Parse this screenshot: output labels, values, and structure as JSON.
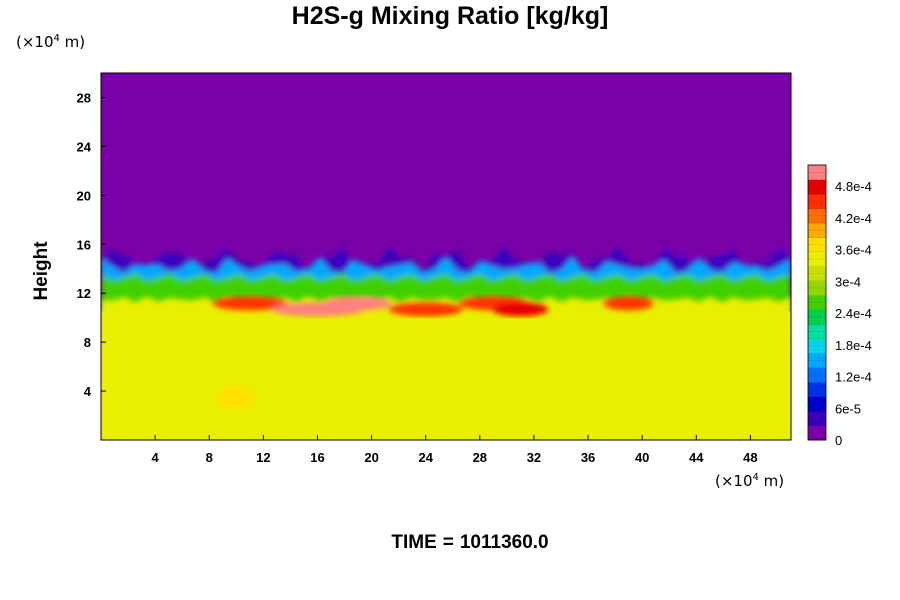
{
  "chart_data": {
    "type": "heatmap",
    "title": "H2S-g Mixing Ratio [kg/kg]",
    "ylabel": "Height",
    "x_unit": "(×10",
    "x_unit_exp": "4",
    "x_unit_tail": "m)",
    "y_unit": "(×10",
    "y_unit_exp": "4",
    "y_unit_tail": "m)",
    "xlim": [
      0,
      51
    ],
    "ylim": [
      0,
      30
    ],
    "x_ticks": [
      4,
      8,
      12,
      16,
      20,
      24,
      28,
      32,
      36,
      40,
      44,
      48
    ],
    "y_ticks": [
      4,
      8,
      12,
      16,
      20,
      24,
      28
    ],
    "colorbar": {
      "range": [
        0,
        0.00052
      ],
      "tick_values": [
        0,
        6e-05,
        0.00012,
        0.00018,
        0.00024,
        0.0003,
        0.00036,
        0.00042,
        0.00048
      ],
      "tick_labels": [
        "0",
        "6e-5",
        "1.2e-4",
        "1.8e-4",
        "2.4e-4",
        "3e-4",
        "3.6e-4",
        "4.2e-4",
        "4.8e-4"
      ],
      "colors": [
        "#7a00a8",
        "#3a00c0",
        "#0000c8",
        "#0030e8",
        "#0070ff",
        "#00a8ff",
        "#00d8e8",
        "#00e0a0",
        "#00d050",
        "#40d000",
        "#90d800",
        "#c8e000",
        "#e8f000",
        "#ffe000",
        "#ffa800",
        "#ff7000",
        "#ff3000",
        "#e80000",
        "#ff8080"
      ]
    },
    "field_summary": {
      "upper_value": 0,
      "lower_value": 0.00034,
      "interface_height": 13,
      "peak_value": 0.00052,
      "peak_height": 11
    }
  },
  "time": {
    "label": "TIME",
    "eq": "=",
    "value": "1011360.0"
  }
}
